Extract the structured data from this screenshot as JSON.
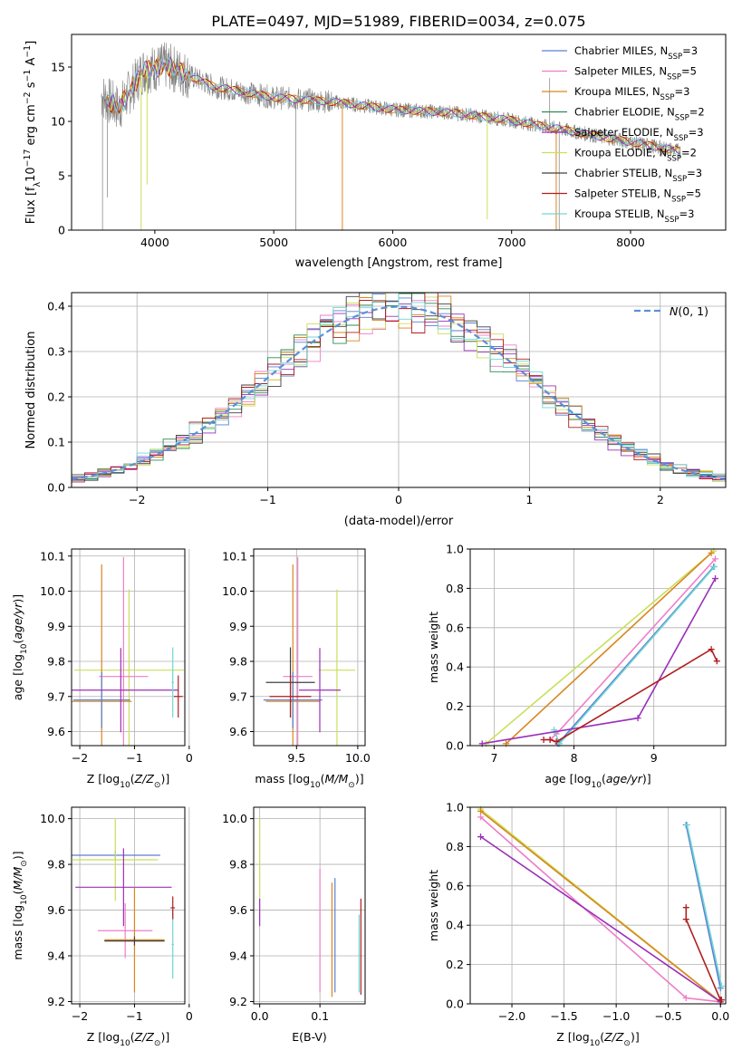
{
  "figure_title": "PLATE=0497, MJD=51989, FIBERID=0034, z=0.075",
  "colors": {
    "Chabrier MILES": "#5b7fd1",
    "Salpeter MILES": "#ef7ec8",
    "Kroupa MILES": "#d9861f",
    "Chabrier ELODIE": "#2e8b57",
    "Salpeter ELODIE": "#9b30b8",
    "Kroupa ELODIE": "#c8e05a",
    "Chabrier STELIB": "#404040",
    "Salpeter STELIB": "#b01e1e",
    "Kroupa STELIB": "#70d6d6",
    "data": "#808080",
    "gaussian": "#5b8fdc"
  },
  "chart_data": [
    {
      "id": "spectrum",
      "type": "line",
      "title": "PLATE=0497, MJD=51989, FIBERID=0034, z=0.075",
      "xlabel": "wavelength [Angstrom, rest frame]",
      "ylabel": "Flux [fλ10⁻¹⁷ erg cm⁻² s⁻¹ A⁻¹]",
      "xlim": [
        3300,
        8800
      ],
      "ylim": [
        0,
        18
      ],
      "xticks": [
        "4000",
        "5000",
        "6000",
        "7000",
        "8000"
      ],
      "yticks": [
        "0",
        "5",
        "10",
        "15"
      ],
      "legend_position": "top-right",
      "legend": [
        {
          "label": "Chabrier MILES, N",
          "sub": "SSP",
          "suffix": "=3"
        },
        {
          "label": "Salpeter MILES, N",
          "sub": "SSP",
          "suffix": "=5"
        },
        {
          "label": "Kroupa MILES, N",
          "sub": "SSP",
          "suffix": "=3"
        },
        {
          "label": "Chabrier ELODIE, N",
          "sub": "SSP",
          "suffix": "=2"
        },
        {
          "label": "Salpeter ELODIE, N",
          "sub": "SSP",
          "suffix": "=3"
        },
        {
          "label": "Kroupa ELODIE, N",
          "sub": "SSP",
          "suffix": "=2"
        },
        {
          "label": "Chabrier STELIB, N",
          "sub": "SSP",
          "suffix": "=3"
        },
        {
          "label": "Salpeter STELIB, N",
          "sub": "SSP",
          "suffix": "=5"
        },
        {
          "label": "Kroupa STELIB, N",
          "sub": "SSP",
          "suffix": "=3"
        }
      ],
      "continuum": {
        "x": [
          3560,
          3700,
          3900,
          4100,
          4500,
          5000,
          5500,
          6000,
          6500,
          7000,
          7500,
          8000,
          8500
        ],
        "y": [
          12.3,
          11.2,
          14.7,
          15.1,
          13.2,
          12.2,
          11.8,
          11.1,
          10.8,
          10.1,
          9.1,
          8.1,
          7.1
        ]
      },
      "data_x_range": [
        3550,
        8420
      ]
    },
    {
      "id": "residuals",
      "type": "line",
      "xlabel": "(data-model)/error",
      "ylabel": "Normed distribution",
      "xlim": [
        -2.5,
        2.5
      ],
      "ylim": [
        0,
        0.43
      ],
      "xticks": [
        "−2",
        "−1",
        "0",
        "1",
        "2"
      ],
      "yticks": [
        "0.0",
        "0.1",
        "0.2",
        "0.3",
        "0.4"
      ],
      "grid": true,
      "legend_position": "top-right",
      "legend": [
        {
          "label": "N(0, 1)"
        }
      ]
    },
    {
      "id": "age-vs-Z",
      "type": "scatter",
      "xlabel": "Z [log10(Z/Z⊙)]",
      "ylabel": "age  [log10(age/yr)]",
      "xlim": [
        -2.15,
        -0.08
      ],
      "ylim": [
        9.56,
        10.12
      ],
      "xticks": [
        "−2",
        "−1",
        "0"
      ],
      "yticks": [
        "9.6",
        "9.7",
        "9.8",
        "9.9",
        "10.0",
        "10.1"
      ],
      "grid": true,
      "points": [
        {
          "series": "Kroupa ELODIE",
          "x": -1.1,
          "xerr": 1.0,
          "y": 9.775,
          "yerr": 0.23
        },
        {
          "series": "Salpeter MILES",
          "x": -1.2,
          "xerr": 0.45,
          "y": 9.757,
          "yerr": 0.34
        },
        {
          "series": "Kroupa MILES",
          "x": -1.6,
          "xerr": 0.55,
          "y": 9.686,
          "yerr": 0.39
        },
        {
          "series": "Chabrier MILES",
          "x": -1.6,
          "xerr": 0.52,
          "y": 9.69,
          "yerr": 0.08
        },
        {
          "series": "Salpeter ELODIE",
          "x": -1.25,
          "xerr": 1.05,
          "y": 9.718,
          "yerr": 0.12
        },
        {
          "series": "Kroupa STELIB",
          "x": -0.3,
          "xerr": 0.02,
          "y": 9.74,
          "yerr": 0.1
        },
        {
          "series": "Salpeter STELIB",
          "x": -0.2,
          "xerr": 0.08,
          "y": 9.7,
          "yerr": 0.06
        }
      ]
    },
    {
      "id": "age-vs-mass",
      "type": "scatter",
      "xlabel": "mass [log10(M/M⊙)]",
      "ylabel": "",
      "xlim": [
        9.15,
        10.06
      ],
      "ylim": [
        9.56,
        10.12
      ],
      "xticks": [
        "9.5",
        "10.0"
      ],
      "yticks": [
        "9.6",
        "9.7",
        "9.8",
        "9.9",
        "10.0",
        "10.1"
      ],
      "grid": true,
      "points": [
        {
          "series": "Kroupa ELODIE",
          "x": 9.83,
          "xerr": 0.15,
          "y": 9.775,
          "yerr": 0.23
        },
        {
          "series": "Salpeter MILES",
          "x": 9.51,
          "xerr": 0.12,
          "y": 9.757,
          "yerr": 0.34
        },
        {
          "series": "Kroupa MILES",
          "x": 9.47,
          "xerr": 0.22,
          "y": 9.686,
          "yerr": 0.39
        },
        {
          "series": "Chabrier MILES",
          "x": 9.47,
          "xerr": 0.24,
          "y": 9.69,
          "yerr": 0.08
        },
        {
          "series": "Chabrier STELIB",
          "x": 9.45,
          "xerr": 0.2,
          "y": 9.74,
          "yerr": 0.1
        },
        {
          "series": "Salpeter ELODIE",
          "x": 9.69,
          "xerr": 0.17,
          "y": 9.718,
          "yerr": 0.12
        },
        {
          "series": "Salpeter STELIB",
          "x": 9.45,
          "xerr": 0.17,
          "y": 9.7,
          "yerr": 0.06
        }
      ]
    },
    {
      "id": "massweight-vs-age",
      "type": "line",
      "xlabel": "age  [log10(age/yr)]",
      "ylabel": "mass weight",
      "xlim": [
        6.7,
        9.9
      ],
      "ylim": [
        0,
        1
      ],
      "xticks": [
        "7",
        "8",
        "9"
      ],
      "yticks": [
        "0.0",
        "0.2",
        "0.4",
        "0.6",
        "0.8",
        "1.0"
      ],
      "grid": true,
      "series": [
        {
          "name": "Kroupa ELODIE",
          "x": [
            6.9,
            9.75
          ],
          "y": [
            0.01,
            0.99
          ]
        },
        {
          "name": "Kroupa MILES",
          "x": [
            7.15,
            9.72
          ],
          "y": [
            0.01,
            0.98
          ]
        },
        {
          "name": "Salpeter MILES",
          "x": [
            7.7,
            7.78,
            9.77
          ],
          "y": [
            0.03,
            0.06,
            0.95
          ]
        },
        {
          "name": "Chabrier MILES",
          "x": [
            7.8,
            9.75
          ],
          "y": [
            0.01,
            0.91
          ]
        },
        {
          "name": "Kroupa STELIB",
          "x": [
            7.75,
            7.82,
            9.76
          ],
          "y": [
            0.08,
            0.01,
            0.91
          ]
        },
        {
          "name": "Salpeter ELODIE",
          "x": [
            6.85,
            8.8,
            9.77
          ],
          "y": [
            0.01,
            0.14,
            0.85
          ]
        },
        {
          "name": "Salpeter STELIB",
          "x": [
            7.62,
            7.7,
            7.78,
            9.72,
            9.79
          ],
          "y": [
            0.03,
            0.03,
            0.02,
            0.49,
            0.43
          ]
        }
      ]
    },
    {
      "id": "mass-vs-Z",
      "type": "scatter",
      "xlabel": "Z [log10(Z/Z⊙)]",
      "ylabel": "mass [log10(M/M⊙)]",
      "xlim": [
        -2.15,
        -0.08
      ],
      "ylim": [
        9.19,
        10.05
      ],
      "xticks": [
        "−2",
        "−1",
        "0"
      ],
      "yticks": [
        "9.2",
        "9.4",
        "9.6",
        "9.8",
        "10.0"
      ],
      "grid": true,
      "points": [
        {
          "series": "Chabrier MILES",
          "x": -1.35,
          "xerr": 0.82,
          "y": 9.84,
          "yerr": 0.02
        },
        {
          "series": "Kroupa ELODIE",
          "x": -1.35,
          "xerr": 0.78,
          "y": 9.82,
          "yerr": 0.18
        },
        {
          "series": "Salpeter ELODIE",
          "x": -1.2,
          "xerr": 0.88,
          "y": 9.7,
          "yerr": 0.17
        },
        {
          "series": "Salpeter MILES",
          "x": -1.17,
          "xerr": 0.5,
          "y": 9.51,
          "yerr": 0.12
        },
        {
          "series": "Kroupa MILES",
          "x": -1.0,
          "xerr": 0.55,
          "y": 9.47,
          "yerr": 0.23
        },
        {
          "series": "Chabrier STELIB",
          "x": -1.0,
          "xerr": 0.55,
          "y": 9.465,
          "yerr": 0.02
        },
        {
          "series": "Kroupa STELIB",
          "x": -0.3,
          "xerr": 0.02,
          "y": 9.45,
          "yerr": 0.15
        },
        {
          "series": "Salpeter STELIB",
          "x": -0.3,
          "xerr": 0.04,
          "y": 9.61,
          "yerr": 0.05
        }
      ]
    },
    {
      "id": "mass-vs-ebv",
      "type": "scatter",
      "xlabel": "E(B-V)",
      "ylabel": "",
      "xlim": [
        -0.01,
        0.175
      ],
      "ylim": [
        9.19,
        10.05
      ],
      "xticks": [
        "0.0",
        "0.1"
      ],
      "yticks": [
        "9.2",
        "9.4",
        "9.6",
        "9.8",
        "10.0"
      ],
      "grid": true,
      "points": [
        {
          "series": "Kroupa ELODIE",
          "x": 0.0,
          "y": 9.82,
          "yerr": 0.18
        },
        {
          "series": "Salpeter ELODIE",
          "x": 0.0,
          "y": 9.59,
          "yerr": 0.06
        },
        {
          "series": "Salpeter MILES",
          "x": 0.1,
          "y": 9.51,
          "yerr": 0.27
        },
        {
          "series": "Kroupa MILES",
          "x": 0.12,
          "y": 9.47,
          "yerr": 0.25
        },
        {
          "series": "Chabrier MILES",
          "x": 0.125,
          "y": 9.49,
          "yerr": 0.25
        },
        {
          "series": "Kroupa STELIB",
          "x": 0.165,
          "y": 9.41,
          "yerr": 0.17
        },
        {
          "series": "Salpeter STELIB",
          "x": 0.168,
          "y": 9.44,
          "yerr": 0.21
        }
      ]
    },
    {
      "id": "massweight-vs-Z",
      "type": "line",
      "xlabel": "Z [log10(Z/Z⊙)]",
      "ylabel": "mass weight",
      "xlim": [
        -2.4,
        0.05
      ],
      "ylim": [
        0,
        1
      ],
      "xticks": [
        "−2.0",
        "−1.5",
        "−1.0",
        "−0.5",
        "0.0"
      ],
      "yticks": [
        "0.0",
        "0.2",
        "0.4",
        "0.6",
        "0.8",
        "1.0"
      ],
      "grid": true,
      "series": [
        {
          "name": "Kroupa ELODIE",
          "x": [
            -2.3,
            0.0
          ],
          "y": [
            0.99,
            0.01
          ]
        },
        {
          "name": "Kroupa MILES",
          "x": [
            -2.3,
            0.0
          ],
          "y": [
            0.98,
            0.01
          ]
        },
        {
          "name": "Salpeter MILES",
          "x": [
            -2.3,
            -0.33,
            0.0
          ],
          "y": [
            0.95,
            0.03,
            0.01
          ]
        },
        {
          "name": "Salpeter ELODIE",
          "x": [
            -2.3,
            0.0
          ],
          "y": [
            0.85,
            0.01
          ]
        },
        {
          "name": "Chabrier MILES",
          "x": [
            -0.33,
            0.0
          ],
          "y": [
            0.91,
            0.08
          ]
        },
        {
          "name": "Kroupa STELIB",
          "x": [
            -0.32,
            0.01
          ],
          "y": [
            0.91,
            0.09
          ]
        },
        {
          "name": "Salpeter STELIB",
          "x": [
            -0.33,
            -0.33,
            0.0,
            0.01
          ],
          "y": [
            0.49,
            0.43,
            0.02,
            0.02
          ]
        }
      ]
    }
  ]
}
